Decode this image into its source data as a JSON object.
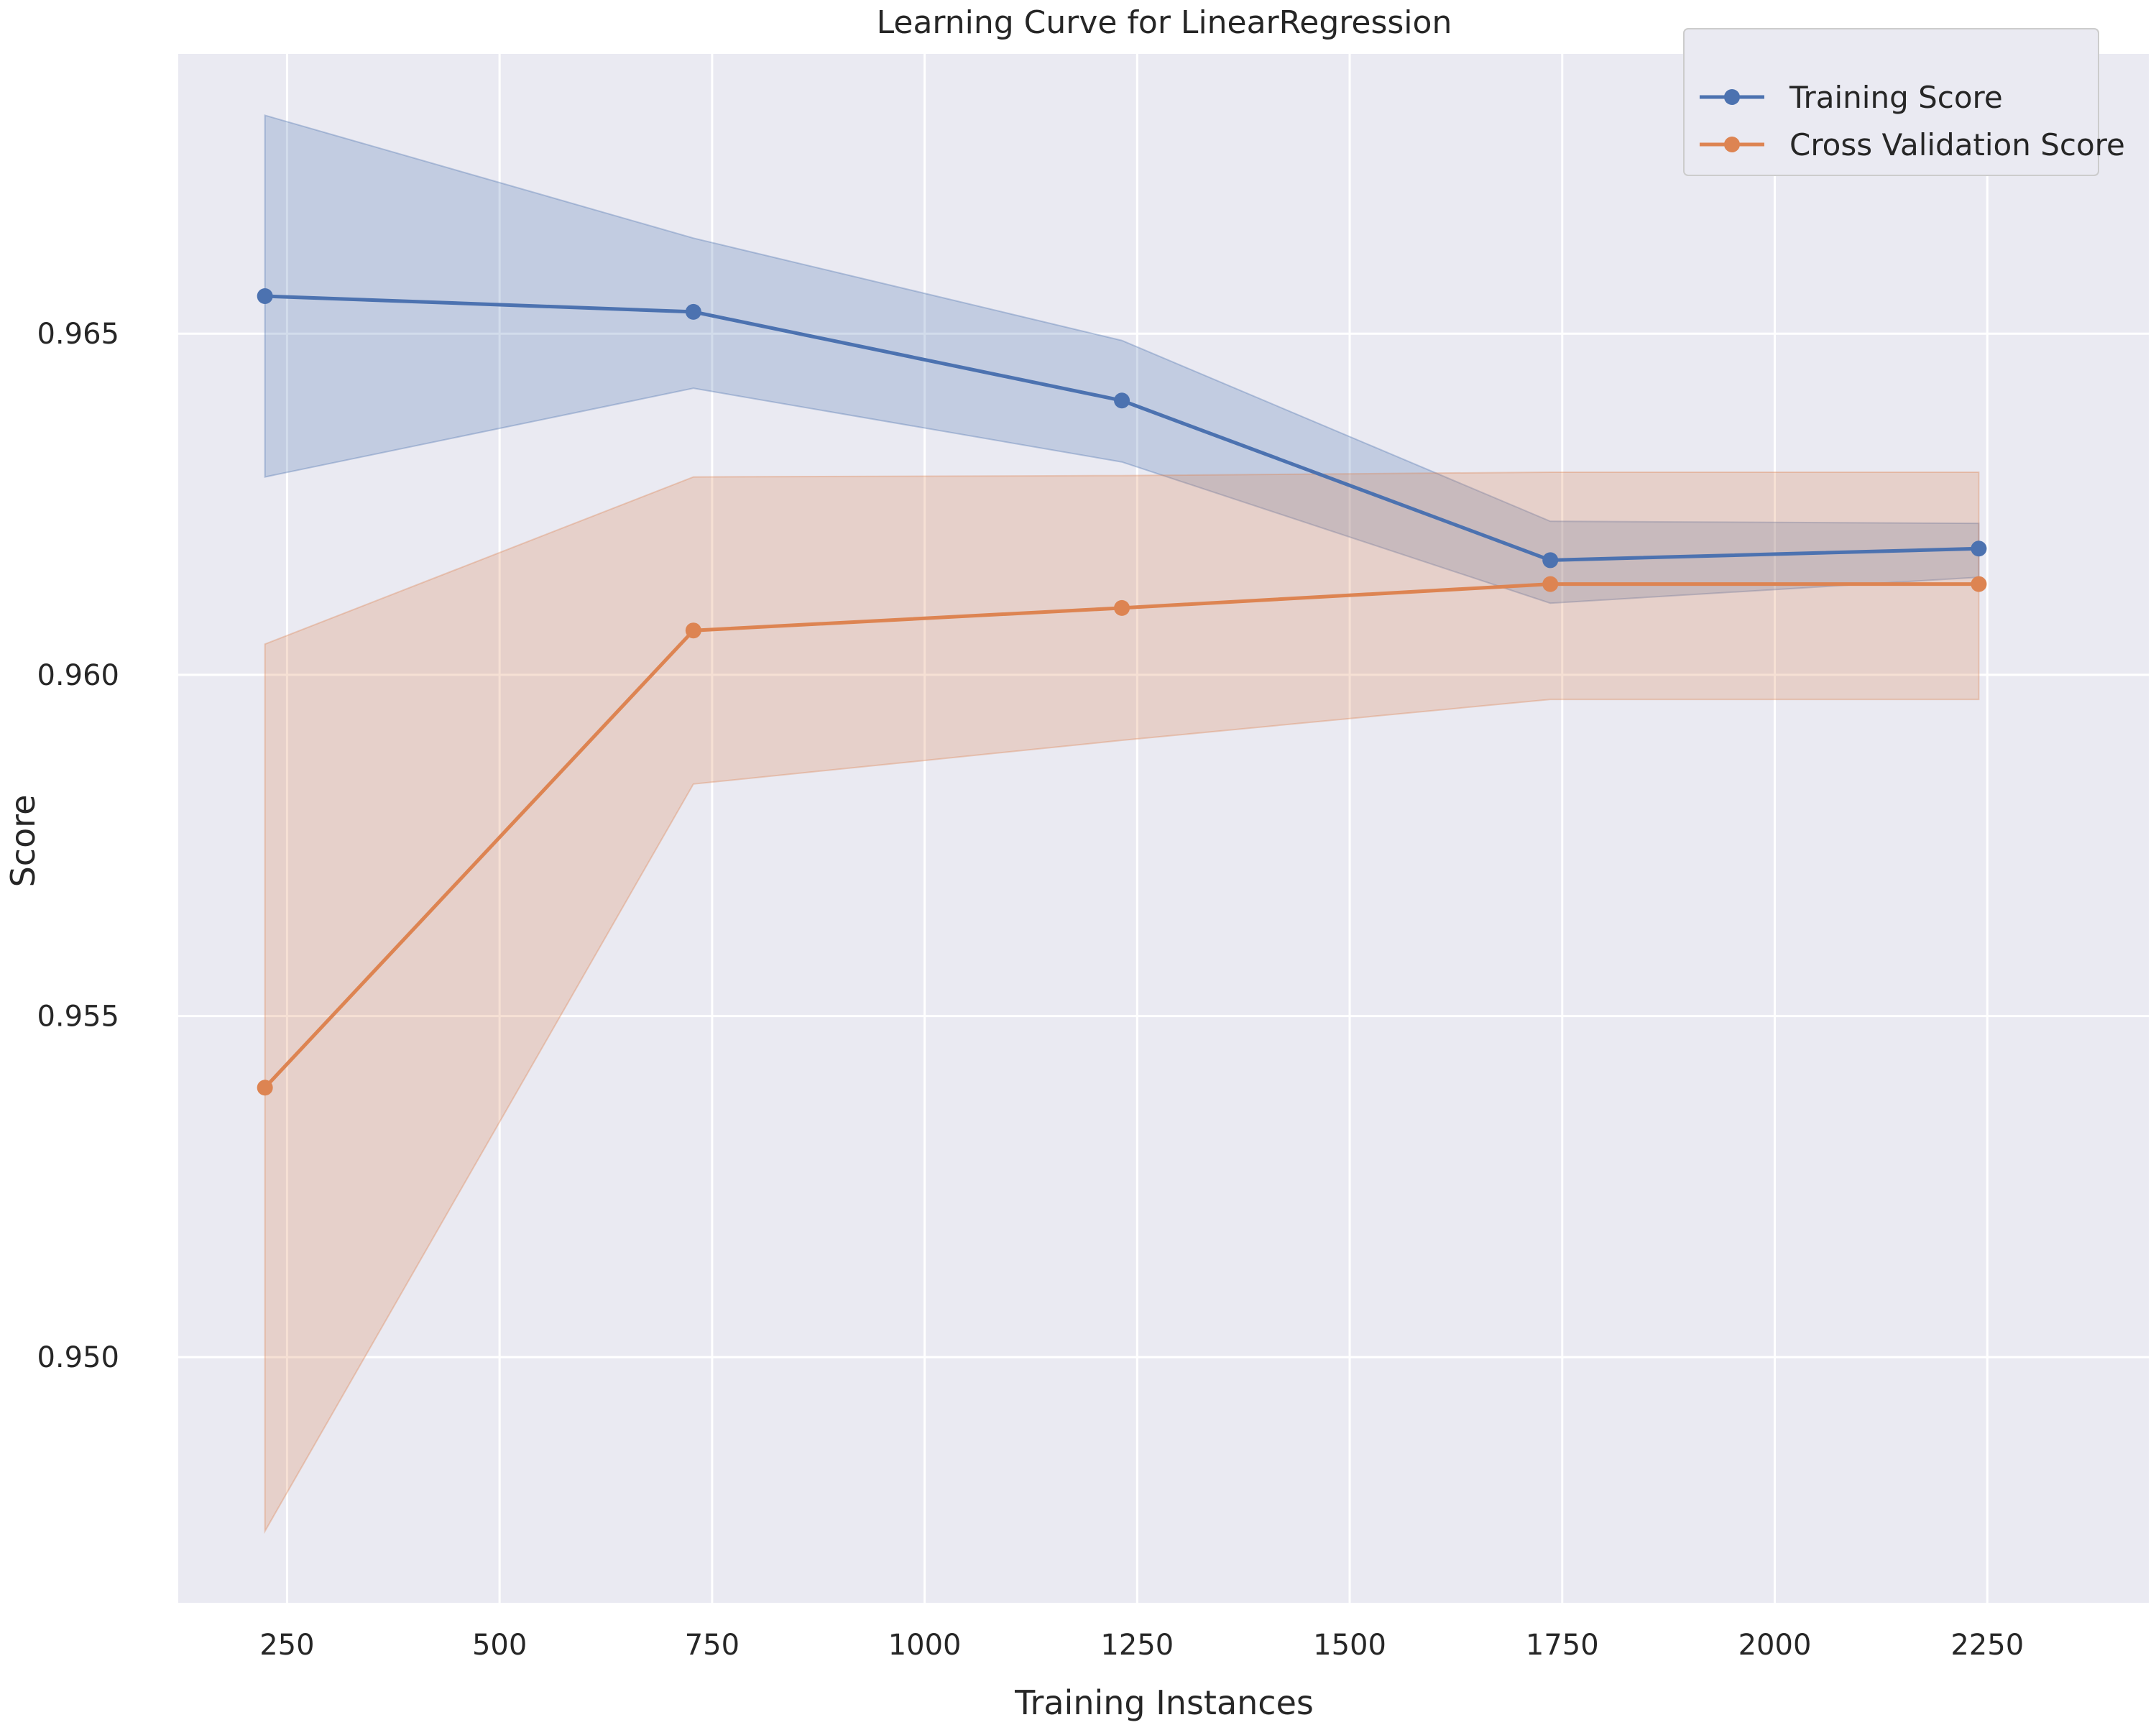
{
  "chart_data": {
    "type": "line",
    "title": "Learning Curve for LinearRegression",
    "xlabel": "Training Instances",
    "ylabel": "Score",
    "xlim": [
      122,
      2440
    ],
    "ylim": [
      0.9464,
      0.9691
    ],
    "xticks": [
      250,
      500,
      750,
      1000,
      1250,
      1500,
      1750,
      2000,
      2250
    ],
    "yticks": [
      0.95,
      0.955,
      0.96,
      0.965
    ],
    "xtick_labels": [
      "250",
      "500",
      "750",
      "1000",
      "1250",
      "1500",
      "1750",
      "2000",
      "2250"
    ],
    "ytick_labels": [
      "0.950",
      "0.955",
      "0.960",
      "0.965"
    ],
    "grid": true,
    "legend_position": "top-right",
    "background": "#eaeaf2",
    "series": [
      {
        "name": "Training Score",
        "color": "#4c72b0",
        "x": [
          224,
          728,
          1232,
          1736,
          2240
        ],
        "y": [
          0.96555,
          0.96532,
          0.96402,
          0.96168,
          0.96185
        ],
        "band_upper": [
          0.9682,
          0.9664,
          0.9649,
          0.96225,
          0.96222
        ],
        "band_lower": [
          0.9629,
          0.9642,
          0.96312,
          0.96105,
          0.96143
        ]
      },
      {
        "name": "Cross Validation Score",
        "color": "#dd8452",
        "x": [
          224,
          728,
          1232,
          1736,
          2240
        ],
        "y": [
          0.95395,
          0.96065,
          0.96098,
          0.96133,
          0.96133
        ],
        "band_upper": [
          0.96045,
          0.9629,
          0.96292,
          0.96297,
          0.96297
        ],
        "band_lower": [
          0.94745,
          0.9584,
          0.95904,
          0.95964,
          0.95964
        ]
      }
    ]
  }
}
